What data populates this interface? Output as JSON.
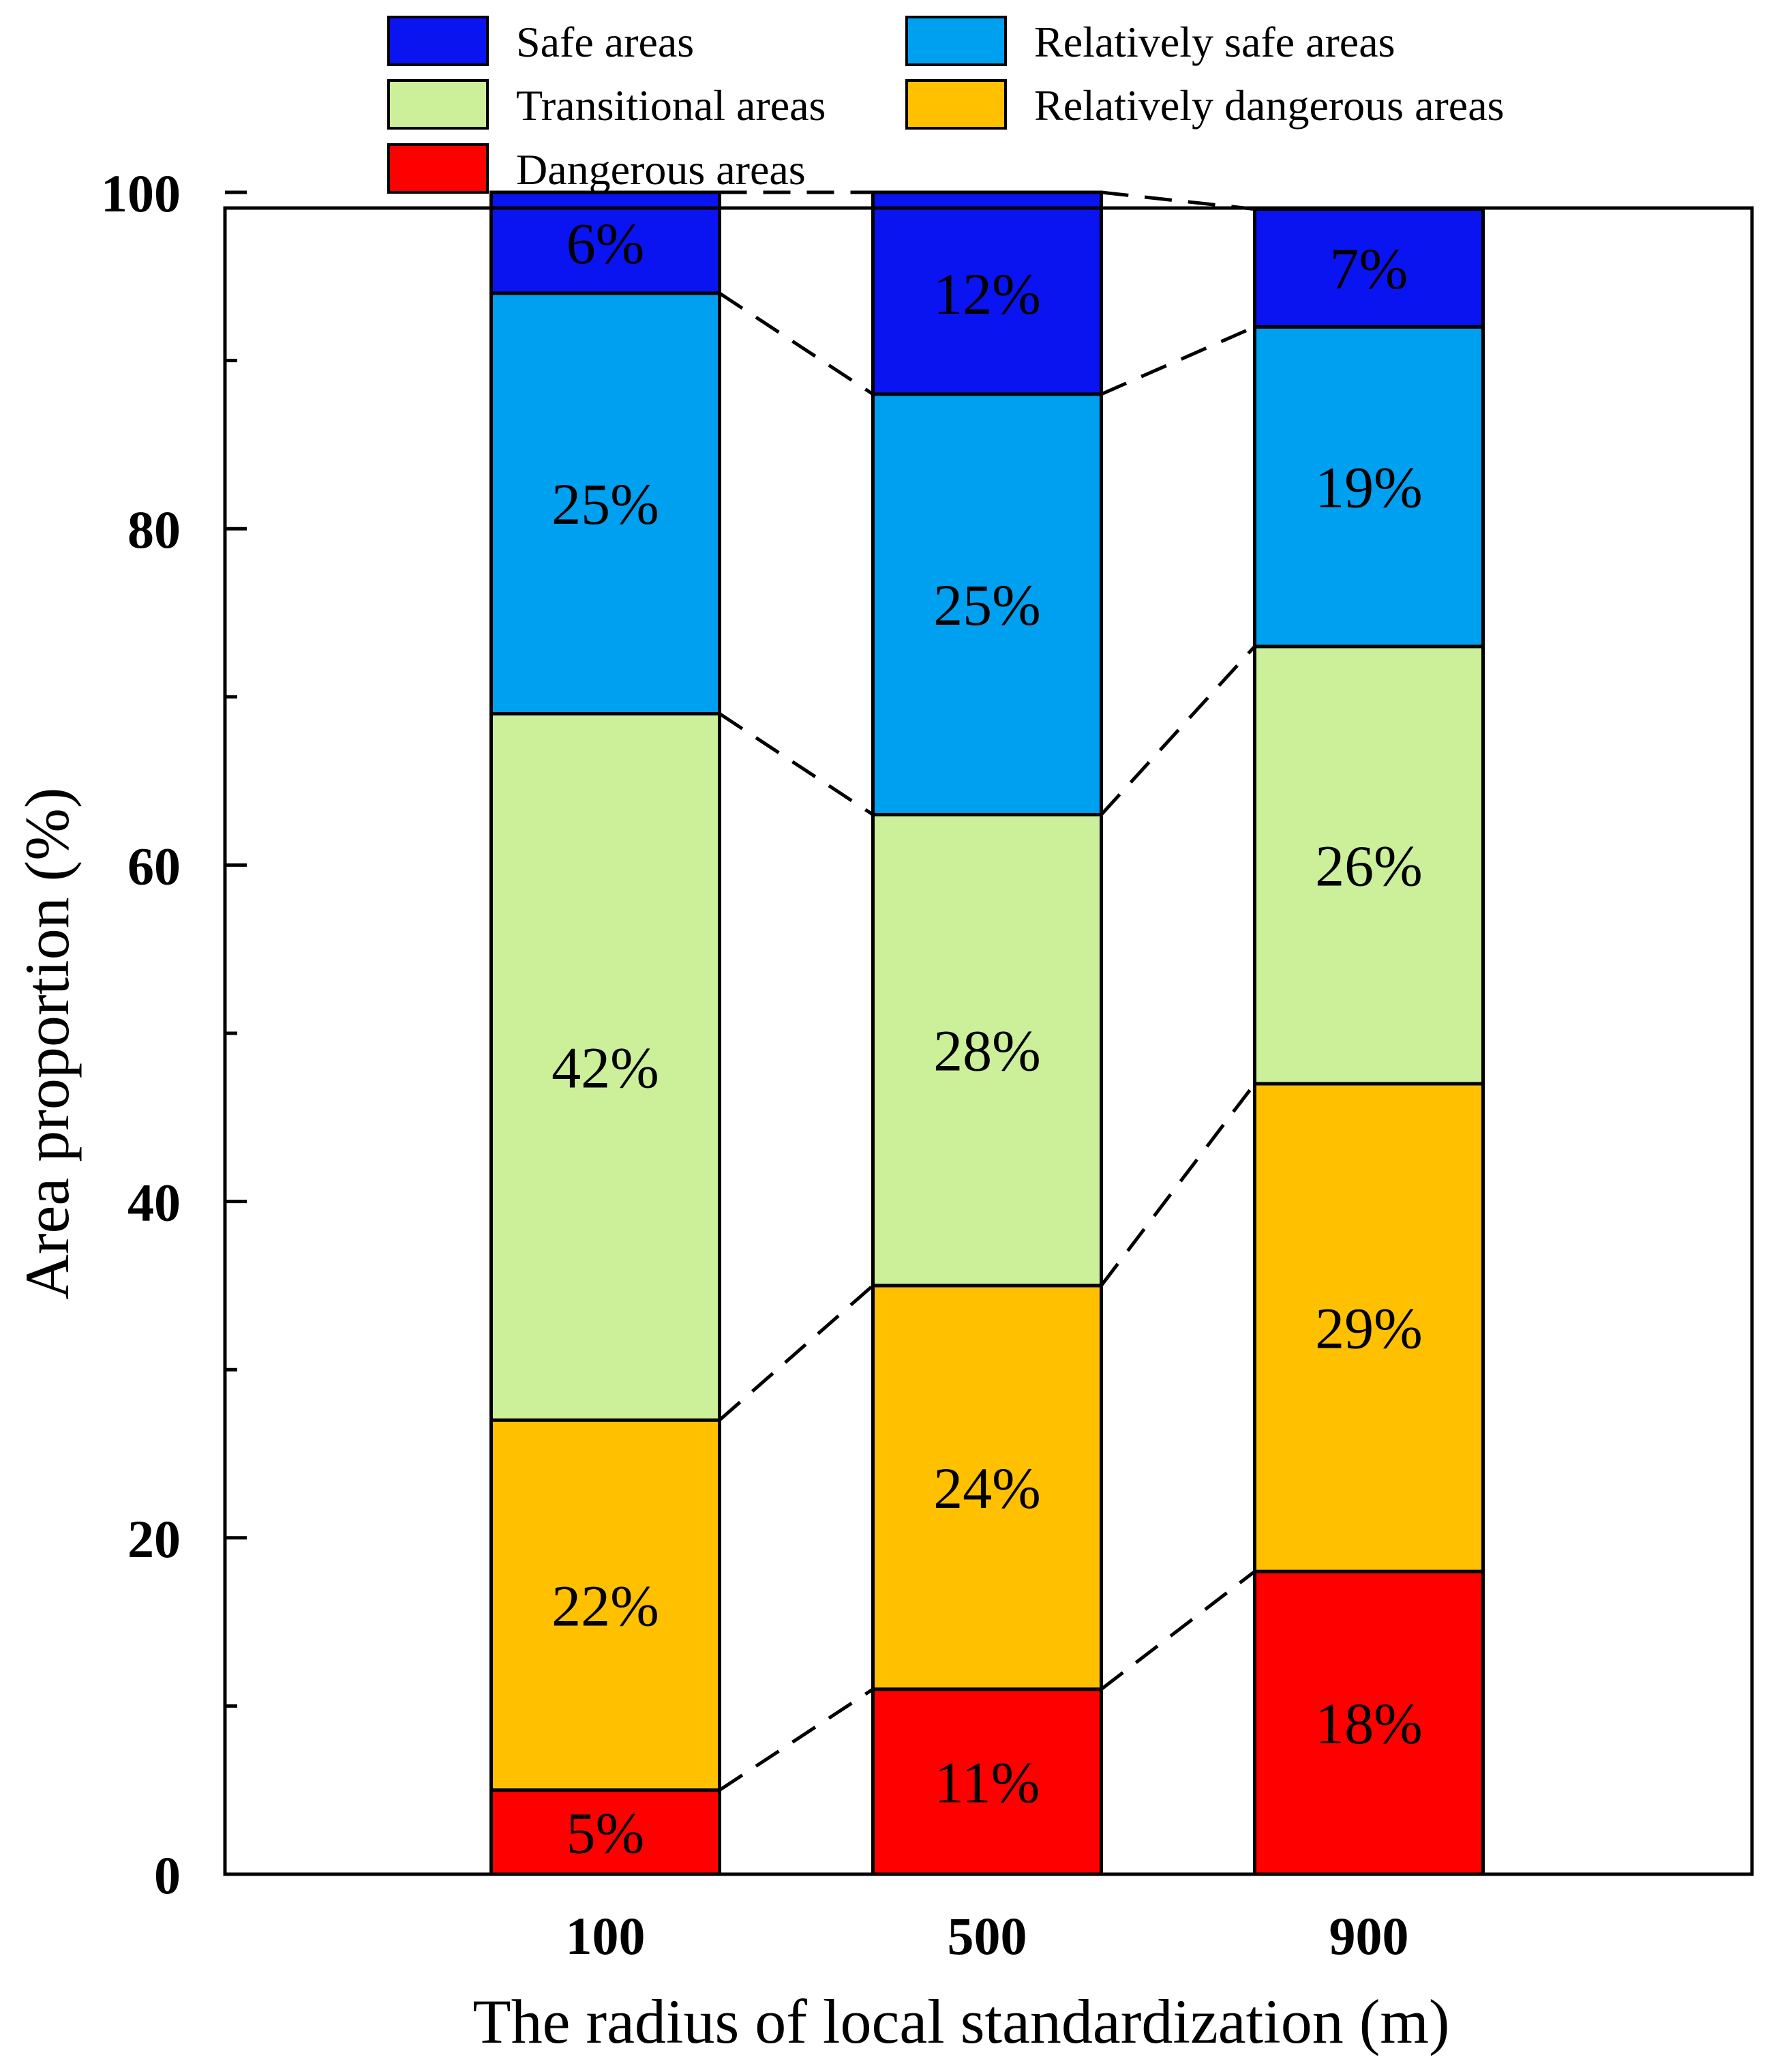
{
  "chart_data": {
    "type": "stacked-bar",
    "xlabel": "The radius of local standardization (m)",
    "ylabel": "Area proportion (%)",
    "ylim": [
      0,
      100
    ],
    "yticks": [
      0,
      20,
      40,
      60,
      80,
      100
    ],
    "categories": [
      "100",
      "500",
      "900"
    ],
    "series": [
      {
        "name": "Dangerous areas",
        "color": "#ff0000",
        "values": [
          5,
          11,
          18
        ],
        "labels": [
          "5%",
          "11%",
          "18%"
        ]
      },
      {
        "name": "Relatively dangerous areas",
        "color": "#ffc000",
        "values": [
          22,
          24,
          29
        ],
        "labels": [
          "22%",
          "24%",
          "29%"
        ]
      },
      {
        "name": "Transitional areas",
        "color": "#ccf09a",
        "values": [
          42,
          28,
          26
        ],
        "labels": [
          "42%",
          "28%",
          "26%"
        ]
      },
      {
        "name": "Relatively safe areas",
        "color": "#00a0f0",
        "values": [
          25,
          25,
          19
        ],
        "labels": [
          "25%",
          "25%",
          "19%"
        ]
      },
      {
        "name": "Safe areas",
        "color": "#0a14f0",
        "values": [
          6,
          12,
          7
        ],
        "labels": [
          "6%",
          "12%",
          "7%"
        ]
      }
    ],
    "legend": {
      "position": "top",
      "order": [
        "Safe areas",
        "Relatively safe areas",
        "Transitional areas",
        "Relatively dangerous areas",
        "Dangerous areas"
      ]
    },
    "connector_lines": "dashed"
  }
}
